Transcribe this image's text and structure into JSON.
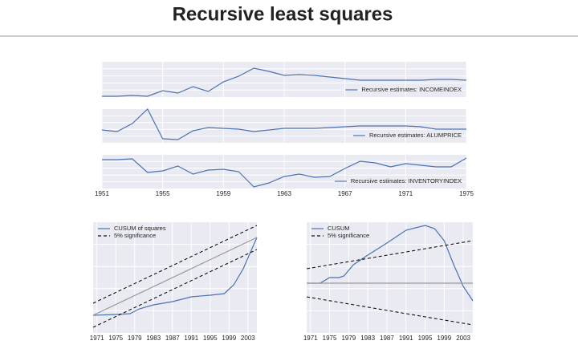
{
  "title": "Recursive least squares",
  "chart_data": [
    {
      "type": "line",
      "subplots": true,
      "legend": "lower right",
      "grid": true,
      "x": [
        1951,
        1952,
        1953,
        1954,
        1955,
        1956,
        1957,
        1958,
        1959,
        1960,
        1961,
        1962,
        1963,
        1964,
        1965,
        1966,
        1967,
        1968,
        1969,
        1970,
        1971,
        1972,
        1973,
        1974,
        1975
      ],
      "xlim": [
        1951,
        1975
      ],
      "xticks": [
        1951,
        1955,
        1959,
        1963,
        1967,
        1971,
        1975
      ],
      "series": [
        {
          "name": "Recursive estimates: INCOMEINDEX",
          "color": "#4c72b0",
          "ylim": [
            0,
            44
          ],
          "values": [
            1,
            1,
            2,
            1,
            8,
            5,
            13,
            7,
            19,
            26,
            36,
            32,
            27,
            28,
            27,
            25,
            23,
            21,
            21,
            21,
            21,
            21,
            22,
            22,
            21
          ]
        },
        {
          "name": "Recursive estimates: ALUMPRICE",
          "color": "#4c72b0",
          "ylim": [
            0,
            42
          ],
          "values": [
            16,
            14,
            24,
            42,
            5,
            4,
            15,
            19,
            18,
            17,
            14,
            16,
            18,
            18,
            18,
            19,
            20,
            21,
            21,
            21,
            21,
            20,
            17,
            17,
            17
          ]
        },
        {
          "name": "Recursive estimates: INVENTORYINDEX",
          "color": "#4c72b0",
          "ylim": [
            0,
            42
          ],
          "values": [
            36,
            36,
            37,
            20,
            22,
            28,
            18,
            23,
            24,
            21,
            2,
            7,
            15,
            18,
            14,
            15,
            25,
            34,
            32,
            27,
            31,
            29,
            27,
            27,
            38
          ]
        }
      ]
    },
    {
      "type": "line",
      "legend": "upper left",
      "grid": true,
      "xlim": [
        1970.2,
        2004.9
      ],
      "xticks": [
        1971,
        1975,
        1979,
        1983,
        1987,
        1991,
        1995,
        1999,
        2003
      ],
      "ylim": [
        0,
        138
      ],
      "series": [
        {
          "name": "CUSUM of squares",
          "color": "#4c72b0",
          "style": "solid",
          "x": [
            1970.2,
            1975,
            1978,
            1980,
            1983,
            1987,
            1991,
            1995,
            1998,
            2000,
            2002,
            2004.9
          ],
          "values": [
            22,
            23,
            24,
            30,
            35,
            39,
            45,
            47,
            49,
            60,
            80,
            119
          ]
        },
        {
          "color": "#999999",
          "style": "solid",
          "x": [
            1970.2,
            2004.9
          ],
          "values": [
            22,
            119
          ]
        },
        {
          "name": "5% significance",
          "color": "#111111",
          "style": "dashed",
          "x": [
            1970.2,
            2004.9
          ],
          "values": [
            37,
            134
          ]
        },
        {
          "color": "#111111",
          "style": "dashed",
          "x": [
            1970.2,
            2004.9
          ],
          "values": [
            7,
            104
          ]
        }
      ]
    },
    {
      "type": "line",
      "legend": "upper left",
      "grid": true,
      "xlim": [
        1970.2,
        2005
      ],
      "xticks": [
        1971,
        1975,
        1979,
        1983,
        1987,
        1991,
        1995,
        1999,
        2003
      ],
      "ylim": [
        -62,
        76
      ],
      "series": [
        {
          "name": "CUSUM",
          "color": "#4c72b0",
          "style": "solid",
          "x": [
            1970.2,
            1973,
            1975,
            1977,
            1978,
            1980,
            1983,
            1987,
            1991,
            1995,
            1997,
            1999,
            2001,
            2003,
            2005
          ],
          "values": [
            0,
            0,
            7,
            7,
            9,
            23,
            35,
            50,
            66,
            72,
            68,
            53,
            23,
            -4,
            -22
          ]
        },
        {
          "color": "#999999",
          "style": "solid",
          "x": [
            1970.2,
            2005
          ],
          "values": [
            0,
            0
          ]
        },
        {
          "name": "5% significance",
          "color": "#111111",
          "style": "dashed",
          "x": [
            1970.2,
            2005
          ],
          "values": [
            18,
            53
          ]
        },
        {
          "color": "#111111",
          "style": "dashed",
          "x": [
            1970.2,
            2005
          ],
          "values": [
            -17,
            -52
          ]
        }
      ]
    }
  ]
}
